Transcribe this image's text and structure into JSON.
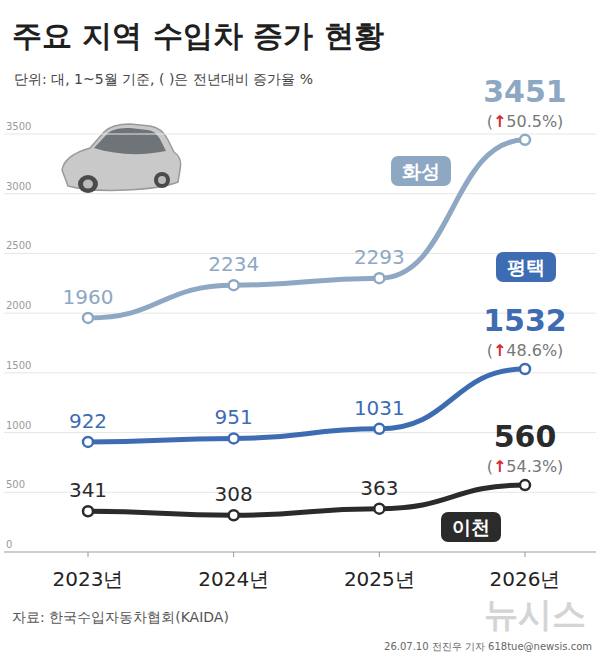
{
  "chart_data": {
    "type": "line",
    "title": "주요 지역 수입차 증가 현황",
    "subtitle": "단위: 대, 1~5월 기준, ( )은 전년대비 증가율 %",
    "categories": [
      "2023년",
      "2024년",
      "2025년",
      "2026년"
    ],
    "series": [
      {
        "name": "화성",
        "color": "#8ea8c3",
        "values": [
          1960,
          2234,
          2293,
          3451
        ],
        "change_labels": [
          null,
          null,
          null,
          "(↑50.5%)"
        ]
      },
      {
        "name": "평택",
        "color": "#3d6cb3",
        "values": [
          922,
          951,
          1031,
          1532
        ],
        "change_labels": [
          null,
          null,
          null,
          "(↑48.6%)"
        ]
      },
      {
        "name": "이천",
        "color": "#2b2b2b",
        "values": [
          341,
          308,
          363,
          560
        ],
        "change_labels": [
          null,
          null,
          null,
          "(↑54.3%)"
        ]
      }
    ],
    "ylim": [
      0,
      3500
    ],
    "yticks": [
      0,
      500,
      1000,
      1500,
      2000,
      2500,
      3000,
      3500
    ],
    "grid": true,
    "data_labels": true,
    "marker": "circle",
    "source": "자료: 한국수입자동차협회(KAIDA)",
    "credit": "26.07.10 전진우 기자 618tue@newsis.com",
    "watermark": "뉴시스"
  }
}
